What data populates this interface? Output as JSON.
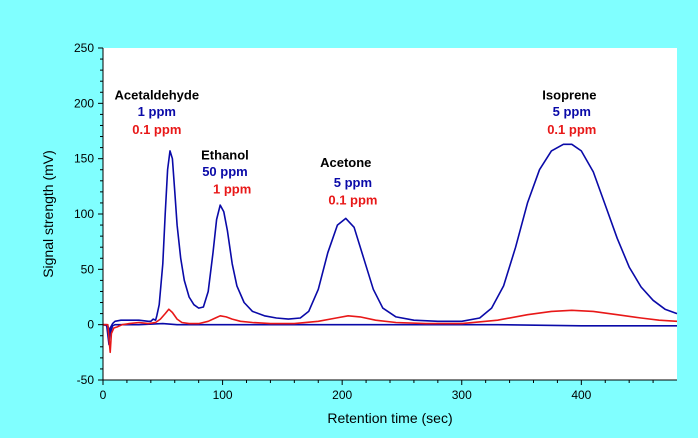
{
  "chart_data": {
    "type": "line",
    "xlabel": "Retention time (sec)",
    "ylabel": "Signal strength (mV)",
    "xlim": [
      0,
      480
    ],
    "ylim": [
      -50,
      250
    ],
    "x_ticks": [
      "0",
      "100",
      "200",
      "300",
      "400"
    ],
    "y_ticks": [
      "-50",
      "0",
      "50",
      "100",
      "150",
      "200",
      "250"
    ],
    "grid": false,
    "legend": "none",
    "colors": {
      "blue": "#0a0aa8",
      "red": "#e81818",
      "text": "#000000",
      "background": "#80ffff",
      "plot_background": "#ffffff"
    },
    "series": [
      {
        "color": "blue",
        "points": [
          [
            0,
            0
          ],
          [
            3,
            0
          ],
          [
            5,
            -18
          ],
          [
            6,
            -3
          ],
          [
            8,
            1
          ],
          [
            10,
            3
          ],
          [
            15,
            4
          ],
          [
            20,
            4
          ],
          [
            30,
            4
          ],
          [
            38,
            3
          ],
          [
            40,
            3
          ],
          [
            42,
            5
          ],
          [
            44,
            4
          ],
          [
            45,
            8
          ],
          [
            47,
            18
          ],
          [
            50,
            55
          ],
          [
            52,
            100
          ],
          [
            54,
            140
          ],
          [
            56,
            157
          ],
          [
            58,
            150
          ],
          [
            60,
            120
          ],
          [
            62,
            90
          ],
          [
            65,
            60
          ],
          [
            68,
            40
          ],
          [
            72,
            25
          ],
          [
            76,
            18
          ],
          [
            80,
            15
          ],
          [
            84,
            16
          ],
          [
            88,
            30
          ],
          [
            92,
            65
          ],
          [
            95,
            95
          ],
          [
            98,
            108
          ],
          [
            101,
            102
          ],
          [
            104,
            85
          ],
          [
            108,
            55
          ],
          [
            112,
            35
          ],
          [
            118,
            20
          ],
          [
            125,
            12
          ],
          [
            135,
            8
          ],
          [
            145,
            6
          ],
          [
            155,
            5
          ],
          [
            165,
            6
          ],
          [
            172,
            12
          ],
          [
            180,
            32
          ],
          [
            188,
            65
          ],
          [
            196,
            90
          ],
          [
            203,
            96
          ],
          [
            210,
            88
          ],
          [
            218,
            60
          ],
          [
            226,
            32
          ],
          [
            234,
            15
          ],
          [
            245,
            7
          ],
          [
            260,
            4
          ],
          [
            280,
            3
          ],
          [
            300,
            3
          ],
          [
            315,
            6
          ],
          [
            325,
            15
          ],
          [
            335,
            35
          ],
          [
            345,
            70
          ],
          [
            355,
            110
          ],
          [
            365,
            140
          ],
          [
            375,
            157
          ],
          [
            385,
            163
          ],
          [
            392,
            163
          ],
          [
            400,
            157
          ],
          [
            410,
            138
          ],
          [
            420,
            108
          ],
          [
            430,
            78
          ],
          [
            440,
            52
          ],
          [
            450,
            34
          ],
          [
            460,
            22
          ],
          [
            470,
            14
          ],
          [
            480,
            10
          ]
        ]
      },
      {
        "color": "blue",
        "points": [
          [
            0,
            0
          ],
          [
            4,
            -1
          ],
          [
            6,
            -8
          ],
          [
            8,
            -1
          ],
          [
            10,
            0
          ],
          [
            30,
            0
          ],
          [
            50,
            1
          ],
          [
            62,
            0
          ],
          [
            90,
            0
          ],
          [
            140,
            0
          ],
          [
            200,
            0
          ],
          [
            260,
            0
          ],
          [
            330,
            0
          ],
          [
            400,
            -1
          ],
          [
            480,
            -1
          ]
        ]
      },
      {
        "color": "red",
        "points": [
          [
            0,
            0
          ],
          [
            4,
            0
          ],
          [
            6,
            -25
          ],
          [
            7,
            -8
          ],
          [
            9,
            -3
          ],
          [
            12,
            -2
          ],
          [
            16,
            0
          ],
          [
            22,
            1
          ],
          [
            30,
            2
          ],
          [
            38,
            1
          ],
          [
            44,
            2
          ],
          [
            48,
            5
          ],
          [
            52,
            10
          ],
          [
            55,
            14
          ],
          [
            58,
            11
          ],
          [
            62,
            5
          ],
          [
            66,
            2
          ],
          [
            72,
            1
          ],
          [
            80,
            1
          ],
          [
            88,
            3
          ],
          [
            94,
            6
          ],
          [
            98,
            8
          ],
          [
            103,
            7
          ],
          [
            108,
            5
          ],
          [
            115,
            3
          ],
          [
            125,
            2
          ],
          [
            140,
            1
          ],
          [
            160,
            1
          ],
          [
            180,
            3
          ],
          [
            195,
            6
          ],
          [
            205,
            8
          ],
          [
            215,
            7
          ],
          [
            228,
            4
          ],
          [
            245,
            2
          ],
          [
            270,
            1
          ],
          [
            300,
            1
          ],
          [
            330,
            4
          ],
          [
            355,
            9
          ],
          [
            375,
            12
          ],
          [
            392,
            13
          ],
          [
            410,
            12
          ],
          [
            430,
            9
          ],
          [
            450,
            6
          ],
          [
            465,
            4
          ],
          [
            480,
            3
          ]
        ]
      }
    ],
    "annotations": [
      {
        "text": "Acetaldehyde",
        "color": "text",
        "bold": true,
        "x": 45,
        "y": 207
      },
      {
        "text": "1 ppm",
        "color": "blue",
        "bold": true,
        "x": 45,
        "y": 192
      },
      {
        "text": "0.1 ppm",
        "color": "red",
        "bold": true,
        "x": 45,
        "y": 176
      },
      {
        "text": "Ethanol",
        "color": "text",
        "bold": true,
        "x": 102,
        "y": 153
      },
      {
        "text": "50 ppm",
        "color": "blue",
        "bold": true,
        "x": 102,
        "y": 138
      },
      {
        "text": "1 ppm",
        "color": "red",
        "bold": true,
        "x": 108,
        "y": 122
      },
      {
        "text": "Acetone",
        "color": "text",
        "bold": true,
        "x": 203,
        "y": 146
      },
      {
        "text": "5 ppm",
        "color": "blue",
        "bold": true,
        "x": 209,
        "y": 128
      },
      {
        "text": "0.1 ppm",
        "color": "red",
        "bold": true,
        "x": 209,
        "y": 112
      },
      {
        "text": "Isoprene",
        "color": "text",
        "bold": true,
        "x": 390,
        "y": 207
      },
      {
        "text": "5 ppm",
        "color": "blue",
        "bold": true,
        "x": 392,
        "y": 192
      },
      {
        "text": "0.1 ppm",
        "color": "red",
        "bold": true,
        "x": 392,
        "y": 176
      }
    ]
  }
}
